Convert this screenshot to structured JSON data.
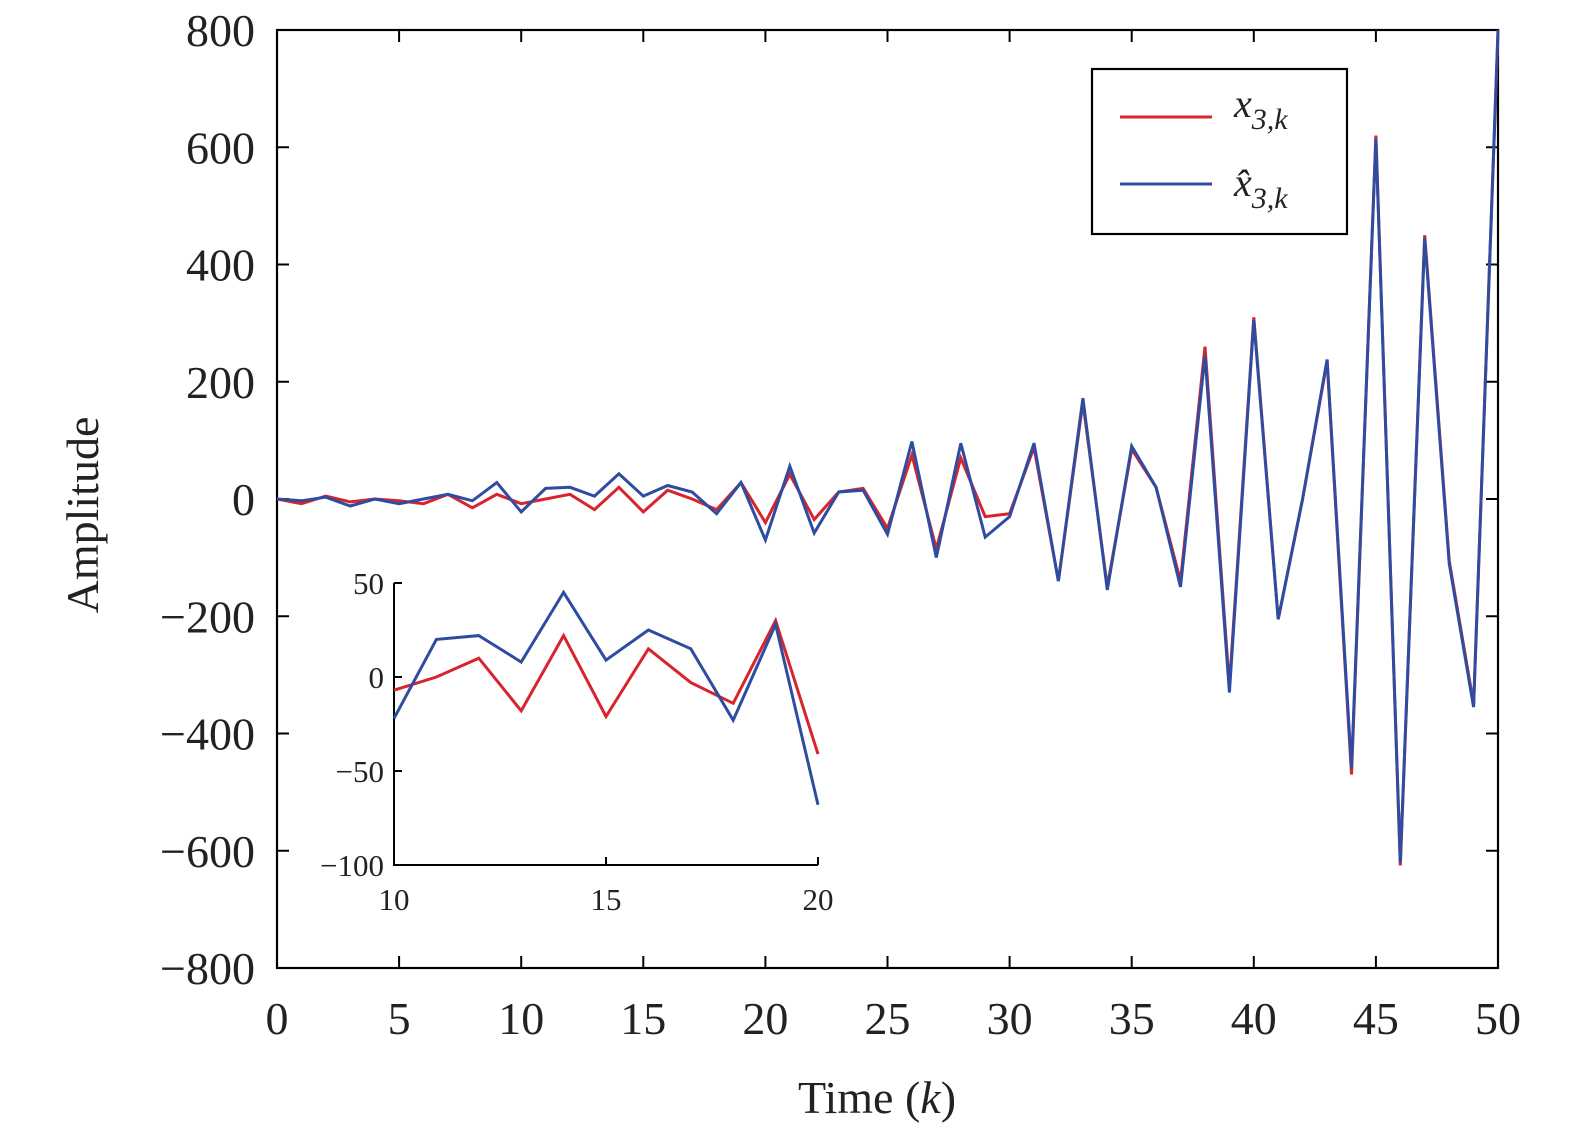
{
  "chart_data": {
    "type": "line",
    "xlabel": "Time (k)",
    "ylabel": "Amplitude",
    "xlim": [
      0,
      50
    ],
    "ylim": [
      -800,
      800
    ],
    "xticks": [
      0,
      5,
      10,
      15,
      20,
      25,
      30,
      35,
      40,
      45,
      50
    ],
    "yticks": [
      -800,
      -600,
      -400,
      -200,
      0,
      200,
      400,
      600,
      800
    ],
    "legend_position": "top-right",
    "grid": false,
    "x": [
      0,
      1,
      2,
      3,
      4,
      5,
      6,
      7,
      8,
      9,
      10,
      11,
      12,
      13,
      14,
      15,
      16,
      17,
      18,
      19,
      20,
      21,
      22,
      23,
      24,
      25,
      26,
      27,
      28,
      29,
      30,
      31,
      32,
      33,
      34,
      35,
      36,
      37,
      38,
      39,
      40,
      41,
      42,
      43,
      44,
      45,
      46,
      47,
      48,
      49,
      50
    ],
    "series": [
      {
        "name": "x_{3,k}",
        "legend_label": "x",
        "legend_subscript": "3,k",
        "color": "#d7242d",
        "values": [
          0,
          -8,
          5,
          -5,
          0,
          -3,
          -8,
          8,
          -15,
          8,
          -8,
          0,
          8,
          -18,
          20,
          -22,
          15,
          0,
          -18,
          28,
          -40,
          42,
          -35,
          12,
          18,
          -50,
          75,
          -85,
          70,
          -30,
          -25,
          88,
          -140,
          165,
          -150,
          85,
          20,
          -140,
          260,
          -320,
          310,
          -205,
          0,
          235,
          -470,
          620,
          -625,
          450,
          -105,
          -350,
          795
        ]
      },
      {
        "name": "x̂_{3,k}",
        "legend_label": "x̂",
        "legend_subscript": "3,k",
        "color": "#2e4da0",
        "values": [
          0,
          -3,
          3,
          -12,
          0,
          -8,
          0,
          8,
          -3,
          28,
          -22,
          18,
          20,
          5,
          43,
          5,
          23,
          12,
          -25,
          28,
          -70,
          56,
          -58,
          12,
          15,
          -60,
          98,
          -100,
          95,
          -65,
          -30,
          95,
          -140,
          172,
          -155,
          90,
          20,
          -150,
          245,
          -330,
          305,
          -205,
          0,
          238,
          -460,
          615,
          -620,
          445,
          -110,
          -355,
          800
        ]
      }
    ],
    "inset": {
      "xlim": [
        10,
        20
      ],
      "ylim": [
        -100,
        50
      ],
      "xticks": [
        10,
        15,
        20
      ],
      "yticks": [
        -100,
        -50,
        0,
        50
      ],
      "x": [
        10,
        11,
        12,
        13,
        14,
        15,
        16,
        17,
        18,
        19,
        20
      ],
      "series": [
        {
          "name": "x_{3,k}",
          "color": "#d7242d",
          "values": [
            -7,
            0,
            10,
            -18,
            22,
            -21,
            15,
            -3,
            -14,
            30,
            -41
          ]
        },
        {
          "name": "x̂_{3,k}",
          "color": "#2e4da0",
          "values": [
            -22,
            20,
            22,
            8,
            45,
            9,
            25,
            15,
            -23,
            28,
            -68
          ]
        }
      ]
    }
  }
}
